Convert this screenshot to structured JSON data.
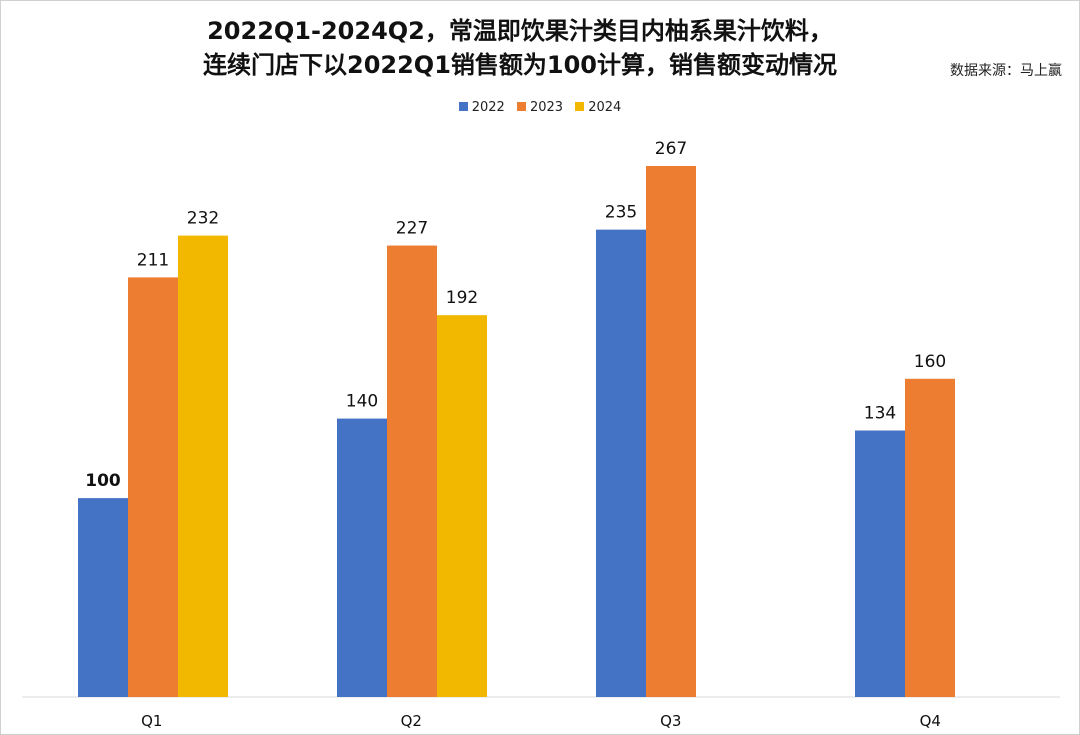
{
  "chart_data": {
    "type": "bar",
    "title_lines": [
      "2022Q1-2024Q2，常温即饮果汁类目内柚系果汁饮料，",
      "连续门店下以2022Q1销售额为100计算，销售额变动情况"
    ],
    "source": "数据来源：马上赢",
    "categories": [
      "Q1",
      "Q2",
      "Q3",
      "Q4"
    ],
    "series": [
      {
        "name": "2022",
        "color": "#4472C4",
        "values": [
          100,
          140,
          235,
          134
        ]
      },
      {
        "name": "2023",
        "color": "#ED7D31",
        "values": [
          211,
          227,
          267,
          160
        ]
      },
      {
        "name": "2024",
        "color": "#F2B800",
        "values": [
          232,
          192,
          null,
          null
        ]
      }
    ],
    "highlight": {
      "series_index": 0,
      "category_index": 0,
      "color": "#C00000"
    },
    "ylim": [
      0,
      267
    ],
    "xlabel": "",
    "ylabel": "",
    "grid": false,
    "legend_position": "top-center",
    "label_color": "#111111",
    "axis_color": "#d9d9d9"
  }
}
